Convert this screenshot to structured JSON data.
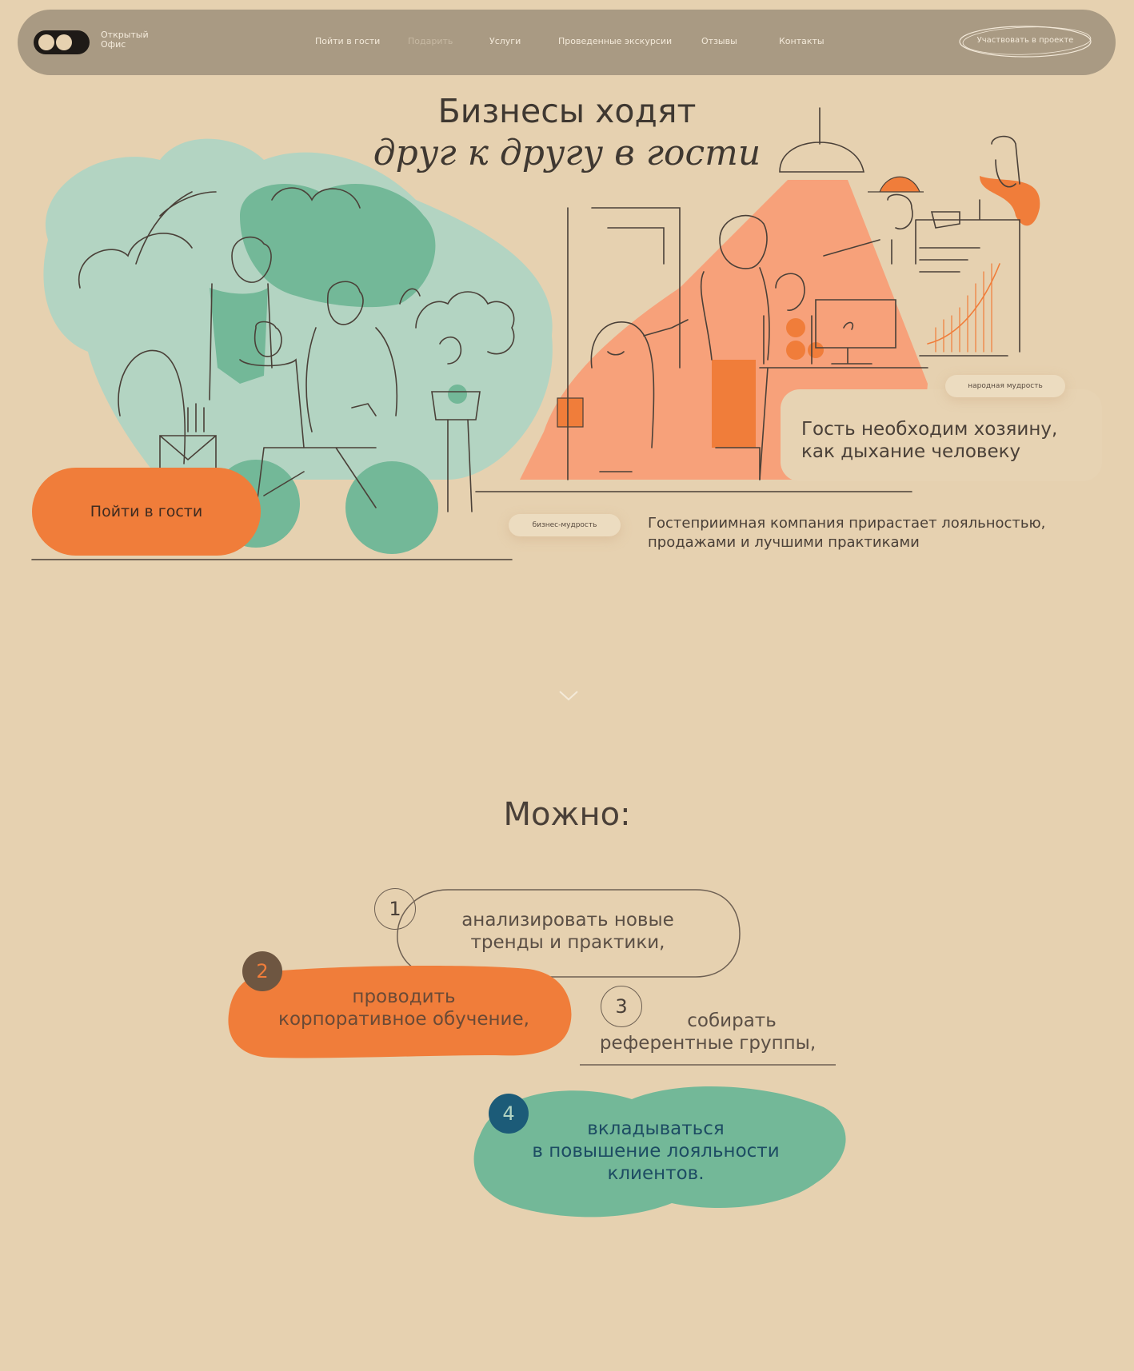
{
  "nav": {
    "logo_line1": "Открытый",
    "logo_line2": "Офис",
    "links": [
      "Пойти в гости",
      "Подарить",
      "Услуги",
      "Проведенные экскурсии",
      "Отзывы",
      "Контакты"
    ],
    "cta": "Участвовать в проекте"
  },
  "hero": {
    "title_line1": "Бизнесы ходят",
    "title_line2": "друг к другу в гости",
    "button": "Пойти в гости",
    "chip_folk": "народная мудрость",
    "quote": [
      "Гость необходим хозяину,",
      "как дыхание человеку"
    ],
    "chip_business": "бизнес-мудрость",
    "sub": [
      "Гостеприимная компания прирастает лояльностью,",
      "продажами и лучшими практиками"
    ]
  },
  "section": {
    "heading": "Можно:",
    "items": [
      {
        "number": "1",
        "lines": [
          "анализировать новые",
          "тренды и практики,"
        ]
      },
      {
        "number": "2",
        "lines": [
          "проводить",
          "корпоративное обучение,"
        ]
      },
      {
        "number": "3",
        "lines": [
          "собирать",
          "референтные группы,"
        ]
      },
      {
        "number": "4",
        "lines": [
          "вкладываться",
          "в повышение лояльности",
          "клиентов."
        ]
      }
    ]
  },
  "colors": {
    "background": "#e6d1b0",
    "nav": "#a99a83",
    "orange": "#f07d3a",
    "salmon": "#f7a17a",
    "mint": "#b3d4c2",
    "green": "#73b898",
    "dark_blue": "#1c5b78",
    "brown": "#6e5641"
  },
  "icons": [
    "logo-eyes-icon",
    "chevron-down-icon"
  ]
}
